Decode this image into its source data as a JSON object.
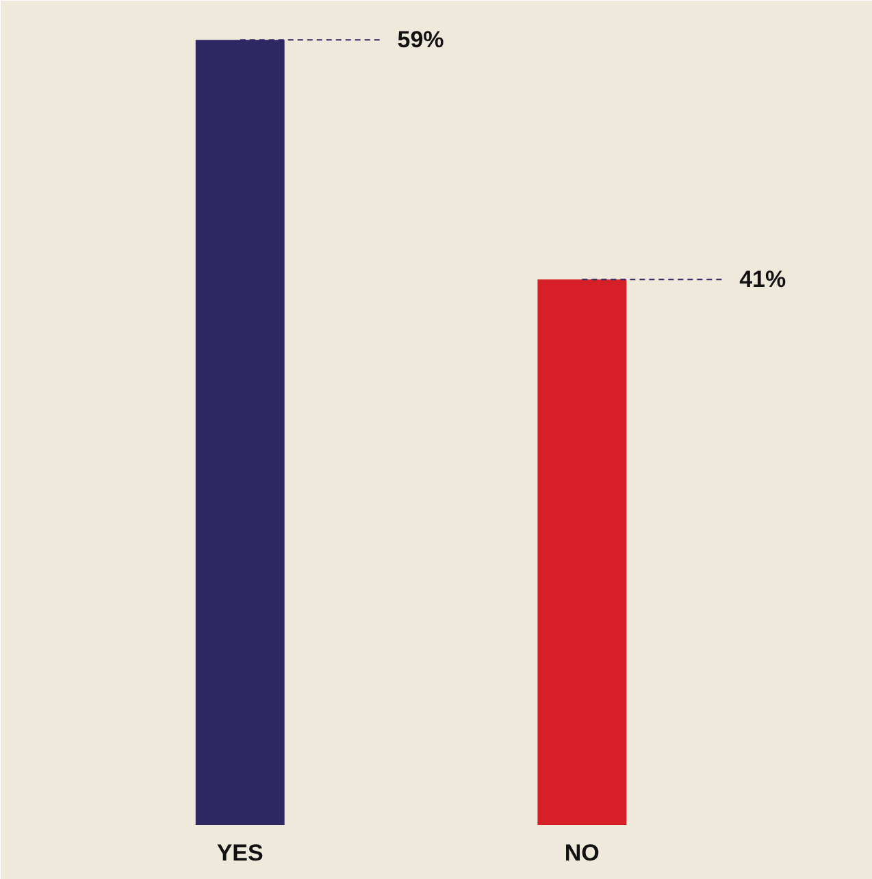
{
  "chart_data": {
    "type": "bar",
    "categories": [
      "YES",
      "NO"
    ],
    "values": [
      59,
      41
    ],
    "value_labels": [
      "59%",
      "41%"
    ],
    "colors": [
      "#2e2763",
      "#d61f26"
    ],
    "grid": false
  }
}
